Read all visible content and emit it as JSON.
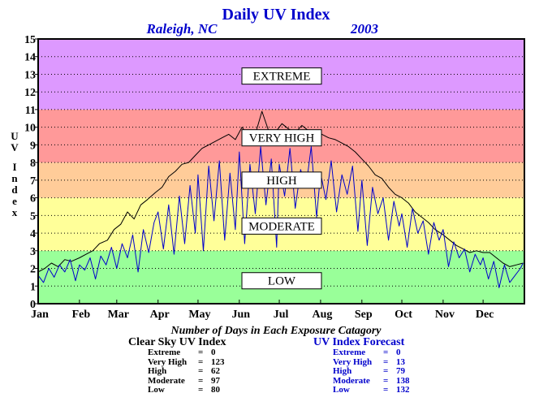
{
  "header": {
    "title": "Daily UV Index",
    "location": "Raleigh, NC",
    "year": "2003"
  },
  "chart_data": {
    "type": "line",
    "title": "Daily UV Index",
    "ylabel": "UV Index",
    "ylim": [
      0,
      15
    ],
    "yticks": [
      0,
      1,
      2,
      3,
      4,
      5,
      6,
      7,
      8,
      9,
      10,
      11,
      12,
      13,
      14,
      15
    ],
    "xlim": [
      0,
      365
    ],
    "x_tick_labels": [
      "Jan",
      "Feb",
      "Mar",
      "Apr",
      "May",
      "Jun",
      "Jul",
      "Aug",
      "Sep",
      "Oct",
      "Nov",
      "Dec"
    ],
    "x_tick_days": [
      0,
      31,
      59,
      90,
      120,
      151,
      181,
      212,
      243,
      273,
      304,
      334
    ],
    "grid": "dotted horizontal lines at each integer",
    "zones": [
      {
        "label": "LOW",
        "from": 0,
        "to": 3,
        "color": "#99ff99",
        "label_value": 1.3
      },
      {
        "label": "MODERATE",
        "from": 3,
        "to": 6,
        "color": "#ffff99",
        "label_value": 4.4
      },
      {
        "label": "HIGH",
        "from": 6,
        "to": 8,
        "color": "#ffcc99",
        "label_value": 7.0
      },
      {
        "label": "VERY HIGH",
        "from": 8,
        "to": 11,
        "color": "#ff9999",
        "label_value": 9.4
      },
      {
        "label": "EXTREME",
        "from": 11,
        "to": 15,
        "color": "#dd99ff",
        "label_value": 12.9
      }
    ],
    "series": [
      {
        "color": "#000000",
        "x": [
          0,
          5,
          10,
          15,
          20,
          25,
          31,
          36,
          41,
          46,
          52,
          57,
          62,
          67,
          72,
          77,
          82,
          88,
          93,
          98,
          103,
          108,
          113,
          118,
          123,
          128,
          133,
          138,
          143,
          148,
          153,
          158,
          163,
          168,
          173,
          178,
          183,
          188,
          193,
          198,
          203,
          208,
          213,
          218,
          223,
          228,
          233,
          238,
          243,
          248,
          253,
          258,
          263,
          268,
          273,
          278,
          283,
          288,
          293,
          298,
          304,
          309,
          314,
          319,
          324,
          329,
          334,
          339,
          344,
          349,
          354,
          359,
          364
        ],
        "y": [
          1.8,
          2.0,
          2.3,
          2.1,
          2.5,
          2.4,
          2.6,
          2.8,
          3.0,
          3.4,
          3.6,
          4.2,
          4.5,
          5.2,
          4.8,
          5.6,
          5.9,
          6.3,
          6.6,
          7.2,
          7.5,
          7.9,
          8.0,
          8.4,
          8.8,
          9.0,
          9.2,
          9.4,
          9.6,
          9.3,
          10.0,
          9.5,
          9.6,
          10.9,
          9.8,
          9.7,
          10.2,
          9.9,
          9.7,
          10.1,
          9.8,
          9.8,
          9.6,
          9.4,
          9.3,
          9.1,
          8.9,
          8.6,
          8.2,
          7.8,
          7.3,
          7.1,
          6.6,
          6.2,
          6.0,
          5.7,
          5.2,
          4.9,
          4.6,
          4.2,
          3.9,
          3.6,
          3.3,
          3.1,
          2.9,
          3.0,
          2.9,
          2.9,
          2.6,
          2.3,
          2.1,
          2.2,
          2.3
        ]
      },
      {
        "color": "#0000cc",
        "x": [
          0,
          4,
          8,
          12,
          16,
          20,
          24,
          28,
          31,
          35,
          39,
          43,
          47,
          51,
          55,
          59,
          63,
          67,
          71,
          75,
          79,
          83,
          87,
          90,
          94,
          98,
          102,
          106,
          110,
          114,
          118,
          120,
          124,
          128,
          132,
          136,
          140,
          144,
          148,
          151,
          155,
          159,
          163,
          167,
          171,
          175,
          179,
          181,
          185,
          189,
          193,
          197,
          201,
          205,
          209,
          212,
          216,
          220,
          224,
          228,
          232,
          236,
          240,
          243,
          247,
          251,
          255,
          259,
          263,
          267,
          271,
          273,
          277,
          281,
          285,
          289,
          293,
          297,
          301,
          304,
          308,
          312,
          316,
          320,
          324,
          328,
          332,
          334,
          338,
          342,
          346,
          350,
          354,
          358,
          362,
          364
        ],
        "y": [
          1.6,
          1.2,
          2.0,
          1.5,
          2.2,
          1.8,
          2.5,
          1.3,
          2.2,
          1.9,
          2.6,
          1.4,
          2.7,
          2.2,
          3.2,
          2.0,
          3.4,
          2.6,
          3.9,
          1.8,
          4.2,
          2.9,
          4.6,
          5.2,
          3.1,
          5.6,
          2.8,
          6.1,
          3.4,
          6.7,
          4.0,
          7.3,
          3.0,
          7.8,
          4.7,
          8.1,
          3.6,
          7.4,
          4.2,
          8.6,
          3.4,
          7.9,
          5.1,
          8.9,
          5.6,
          8.2,
          3.2,
          7.9,
          6.1,
          8.8,
          5.4,
          7.6,
          6.6,
          8.9,
          4.9,
          7.4,
          5.9,
          8.1,
          5.2,
          7.3,
          6.2,
          7.8,
          4.1,
          7.0,
          3.3,
          6.6,
          5.1,
          6.0,
          3.6,
          5.8,
          4.4,
          5.1,
          3.2,
          5.4,
          4.0,
          4.7,
          2.8,
          4.6,
          3.6,
          4.2,
          2.1,
          3.5,
          2.6,
          3.1,
          1.8,
          2.8,
          2.2,
          2.6,
          1.4,
          2.4,
          0.9,
          2.2,
          1.2,
          1.6,
          2.0,
          2.3
        ]
      }
    ]
  },
  "stats": {
    "caption": "Number of Days in Each Exposure Catagory",
    "clear_sky": {
      "title": "Clear Sky UV Index",
      "rows": [
        {
          "name": "Extreme",
          "eq": "=",
          "value": "0"
        },
        {
          "name": "Very High",
          "eq": "=",
          "value": "123"
        },
        {
          "name": "High",
          "eq": "=",
          "value": "62"
        },
        {
          "name": "Moderate",
          "eq": "=",
          "value": "97"
        },
        {
          "name": "Low",
          "eq": "=",
          "value": "80"
        }
      ]
    },
    "forecast": {
      "title": "UV Index Forecast",
      "rows": [
        {
          "name": "Extreme",
          "eq": "=",
          "value": "0"
        },
        {
          "name": "Very High",
          "eq": "=",
          "value": "13"
        },
        {
          "name": "High",
          "eq": "=",
          "value": "79"
        },
        {
          "name": "Moderate",
          "eq": "=",
          "value": "138"
        },
        {
          "name": "Low",
          "eq": "=",
          "value": "132"
        }
      ]
    }
  }
}
